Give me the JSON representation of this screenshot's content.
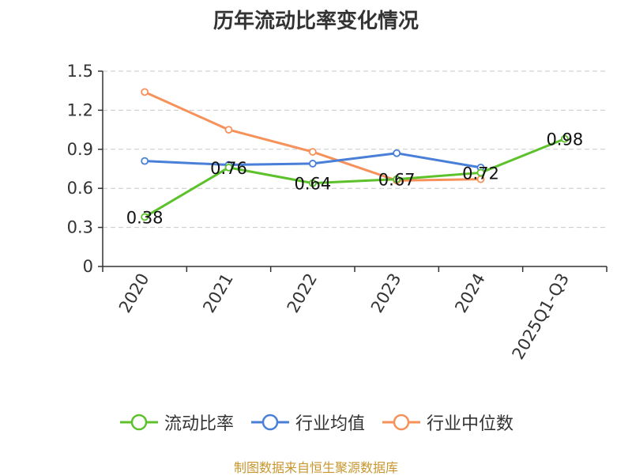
{
  "chart_data": {
    "type": "line",
    "title": "历年流动比率变化情况",
    "categories": [
      "2020",
      "2021",
      "2022",
      "2023",
      "2024",
      "2025Q1-Q3"
    ],
    "ylim": [
      0,
      1.5
    ],
    "yticks": [
      "0",
      "0.3",
      "0.6",
      "0.9",
      "1.2",
      "1.5"
    ],
    "grid": true,
    "legend_position": "bottom",
    "series": [
      {
        "name": "流动比率",
        "color": "#5cc12b",
        "values": [
          0.38,
          0.76,
          0.64,
          0.67,
          0.72,
          0.98
        ],
        "labels": [
          "0.38",
          "0.76",
          "0.64",
          "0.67",
          "0.72",
          "0.98"
        ]
      },
      {
        "name": "行业均值",
        "color": "#4a7fd8",
        "values": [
          0.81,
          0.78,
          0.79,
          0.87,
          0.76,
          null
        ]
      },
      {
        "name": "行业中位数",
        "color": "#f7915a",
        "values": [
          1.34,
          1.05,
          0.88,
          0.66,
          0.67,
          null
        ]
      }
    ]
  },
  "source": "制图数据来自恒生聚源数据库"
}
